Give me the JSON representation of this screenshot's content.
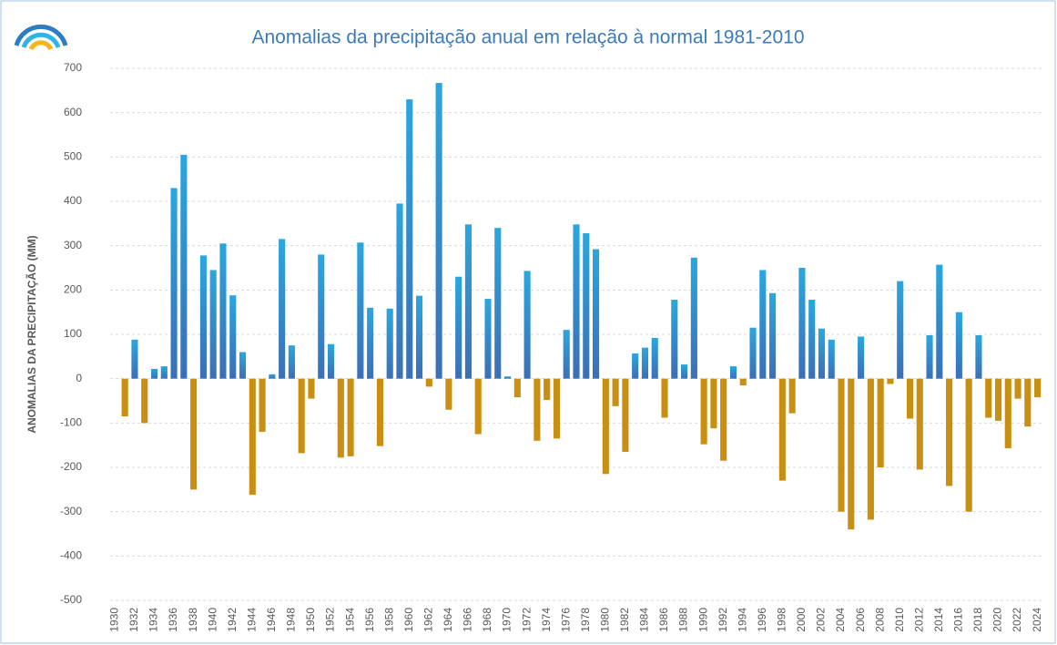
{
  "chart_data": {
    "type": "bar",
    "title": "Anomalias da precipitação anual em relação à normal 1981-2010",
    "y_label": "ANOMALIAS DA PRECIPITAÇÃO (MM)",
    "categories": [
      "1930",
      null,
      "1932",
      null,
      "1934",
      null,
      "1936",
      null,
      "1938",
      null,
      "1940",
      null,
      "1942",
      null,
      "1944",
      null,
      "1946",
      null,
      "1948",
      null,
      "1950",
      null,
      "1952",
      null,
      "1954",
      null,
      "1956",
      null,
      "1958",
      null,
      "1960",
      null,
      "1962",
      null,
      "1964",
      null,
      "1966",
      null,
      "1968",
      null,
      "1970",
      null,
      "1972",
      null,
      "1974",
      null,
      "1976",
      null,
      "1978",
      null,
      "1980",
      null,
      "1982",
      null,
      "1984",
      null,
      "1986",
      null,
      "1988",
      null,
      "1990",
      null,
      "1992",
      null,
      "1994",
      null,
      "1996",
      null,
      "1998",
      null,
      "2000",
      null,
      "2002",
      null,
      "2004",
      null,
      "2006",
      null,
      "2008",
      null,
      "2010",
      null,
      "2012",
      null,
      "2014",
      null,
      "2016",
      null,
      "2018",
      null,
      "2020",
      null,
      "2022",
      null,
      "2024"
    ],
    "values": [
      0,
      -85,
      88,
      -100,
      22,
      28,
      430,
      505,
      -250,
      278,
      245,
      305,
      188,
      60,
      -262,
      -120,
      10,
      315,
      75,
      -168,
      -45,
      280,
      78,
      -178,
      -175,
      307,
      160,
      -152,
      158,
      395,
      630,
      187,
      -18,
      667,
      -70,
      230,
      348,
      -125,
      180,
      340,
      5,
      -42,
      243,
      -140,
      -48,
      -135,
      110,
      348,
      328,
      292,
      -215,
      -62,
      -165,
      57,
      70,
      92,
      -88,
      178,
      32,
      273,
      -148,
      -112,
      -185,
      28,
      -15,
      115,
      245,
      193,
      -230,
      -78,
      250,
      178,
      113,
      88,
      -300,
      -340,
      95,
      -318,
      -200,
      -12,
      220,
      -90,
      -205,
      98,
      257,
      -242,
      150,
      -300,
      98,
      -88,
      -95,
      -157,
      -45,
      -108,
      -42
    ],
    "color_positive": "#2aa7df",
    "color_positive_base": "#3b6fb6",
    "color_negative": "#c88f12",
    "ylim": [
      -500,
      700
    ],
    "yticks": [
      -500,
      -400,
      -300,
      -200,
      -100,
      0,
      100,
      200,
      300,
      400,
      500,
      600,
      700
    ],
    "grid": true
  }
}
